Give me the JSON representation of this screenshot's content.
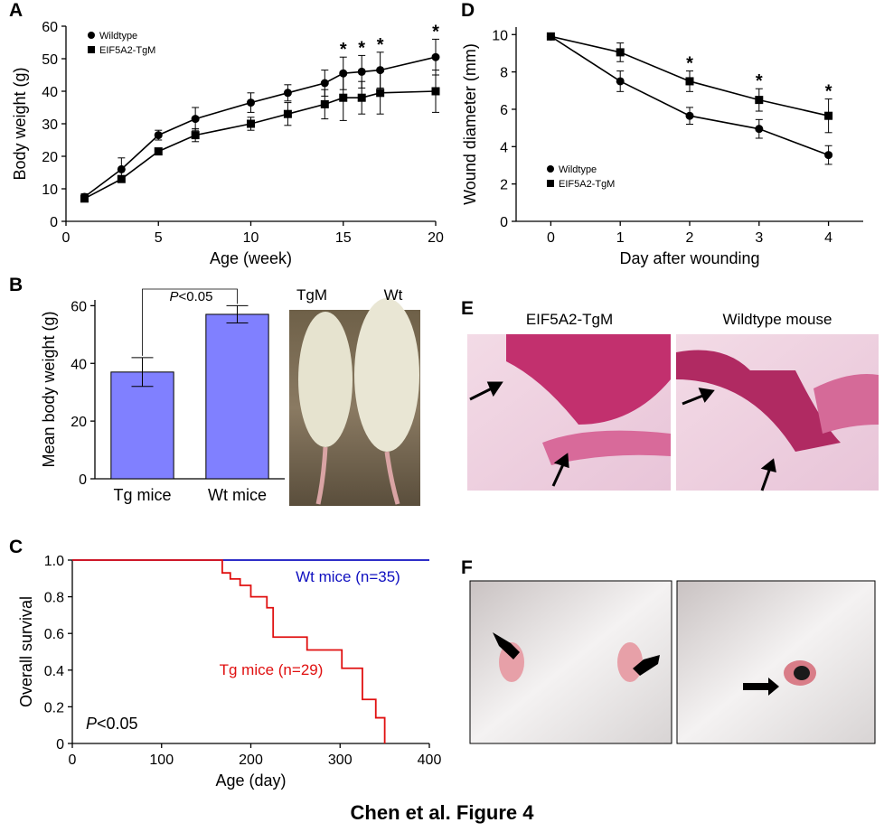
{
  "chart_data": [
    {
      "panel": "A",
      "type": "line",
      "xlabel": "Age (week)",
      "ylabel": "Body weight (g)",
      "x": [
        1,
        3,
        5,
        7,
        10,
        12,
        14,
        15,
        16,
        17,
        20
      ],
      "xlim": [
        0,
        20
      ],
      "xticks": [
        0,
        5,
        10,
        15,
        20
      ],
      "ylim": [
        0,
        60
      ],
      "yticks": [
        0,
        10,
        20,
        30,
        40,
        50,
        60
      ],
      "legend": "upper left",
      "series": [
        {
          "name": "Wildtype",
          "color": "#000000",
          "marker": "circle",
          "values": [
            7.5,
            16,
            26.5,
            31.5,
            36.5,
            39.5,
            42.5,
            45.5,
            46,
            46.5,
            50.5
          ],
          "errors": [
            1,
            3.5,
            1.5,
            3.5,
            3,
            2.5,
            4,
            5,
            5,
            5.5,
            5.5
          ]
        },
        {
          "name": "EIF5A2-TgM",
          "color": "#000000",
          "marker": "square",
          "values": [
            7,
            13,
            21.5,
            26.5,
            30,
            33,
            36,
            38,
            38,
            39.5,
            40
          ],
          "errors": [
            0.5,
            0.5,
            0.5,
            2,
            2,
            3.5,
            4.5,
            7,
            5,
            6.5,
            6.5
          ]
        }
      ],
      "annotations": [
        {
          "text": "*",
          "x": 15
        },
        {
          "text": "*",
          "x": 16
        },
        {
          "text": "*",
          "x": 17
        },
        {
          "text": "*",
          "x": 20
        }
      ]
    },
    {
      "panel": "B",
      "type": "bar",
      "ylabel": "Mean body weight (g)",
      "categories": [
        "Tg mice",
        "Wt mice"
      ],
      "values": [
        37,
        57
      ],
      "errors": [
        5,
        3
      ],
      "color": "#8080ff",
      "ylim": [
        0,
        62
      ],
      "yticks": [
        0,
        20,
        40,
        60
      ],
      "pvalue": [
        "P",
        "<0.05"
      ]
    },
    {
      "panel": "C",
      "type": "step",
      "xlabel": "Age (day)",
      "ylabel": "Overall survival",
      "xlim": [
        0,
        400
      ],
      "xticks": [
        0,
        100,
        200,
        300,
        400
      ],
      "ylim": [
        0,
        1
      ],
      "yticks": [
        0,
        0.2,
        0.4,
        0.6,
        0.8,
        {
          "value": 1,
          "label": "1.0"
        }
      ],
      "series": [
        {
          "name": "Wt mice (n=35)",
          "color": "#1010c0",
          "x": [
            0,
            400
          ],
          "values": [
            1,
            1
          ]
        },
        {
          "name": "Tg mice (n=29)",
          "color": "#e01010",
          "x": [
            0,
            168,
            177,
            188,
            200,
            218,
            225,
            263,
            302,
            325,
            340,
            350
          ],
          "values": [
            1,
            0.93,
            0.897,
            0.862,
            0.8,
            0.74,
            0.58,
            0.51,
            0.41,
            0.24,
            0.14,
            0
          ]
        }
      ],
      "pvalue": [
        "P",
        "<0.05"
      ]
    },
    {
      "panel": "D",
      "type": "line",
      "xlabel": "Day after wounding",
      "ylabel": "Wound diameter (mm)",
      "x": [
        0,
        1,
        2,
        3,
        4
      ],
      "xlim": [
        -0.5,
        4.5
      ],
      "xticks": [
        0,
        1,
        2,
        3,
        4
      ],
      "ylim": [
        0,
        10.4
      ],
      "yticks": [
        0,
        2,
        4,
        6,
        8,
        10
      ],
      "legend": "lower left",
      "series": [
        {
          "name": "Wildtype",
          "color": "#000000",
          "marker": "circle",
          "values": [
            9.9,
            7.5,
            5.65,
            4.95,
            3.55
          ],
          "errors": [
            0.1,
            0.55,
            0.45,
            0.5,
            0.5
          ]
        },
        {
          "name": "EIF5A2-TgM",
          "color": "#000000",
          "marker": "square",
          "values": [
            9.9,
            9.05,
            7.5,
            6.5,
            5.65
          ],
          "errors": [
            0.1,
            0.5,
            0.55,
            0.6,
            0.9
          ]
        }
      ],
      "annotations": [
        {
          "text": "*",
          "x": 2
        },
        {
          "text": "*",
          "x": 3
        },
        {
          "text": "*",
          "x": 4
        }
      ]
    }
  ],
  "photos": {
    "B": {
      "labels": [
        "TgM",
        "Wt"
      ]
    },
    "E": {
      "panel": "E",
      "labels": [
        "EIF5A2-TgM",
        "Wildtype mouse"
      ]
    },
    "F": {
      "panel": "F"
    }
  },
  "caption": "Chen et al. Figure 4"
}
